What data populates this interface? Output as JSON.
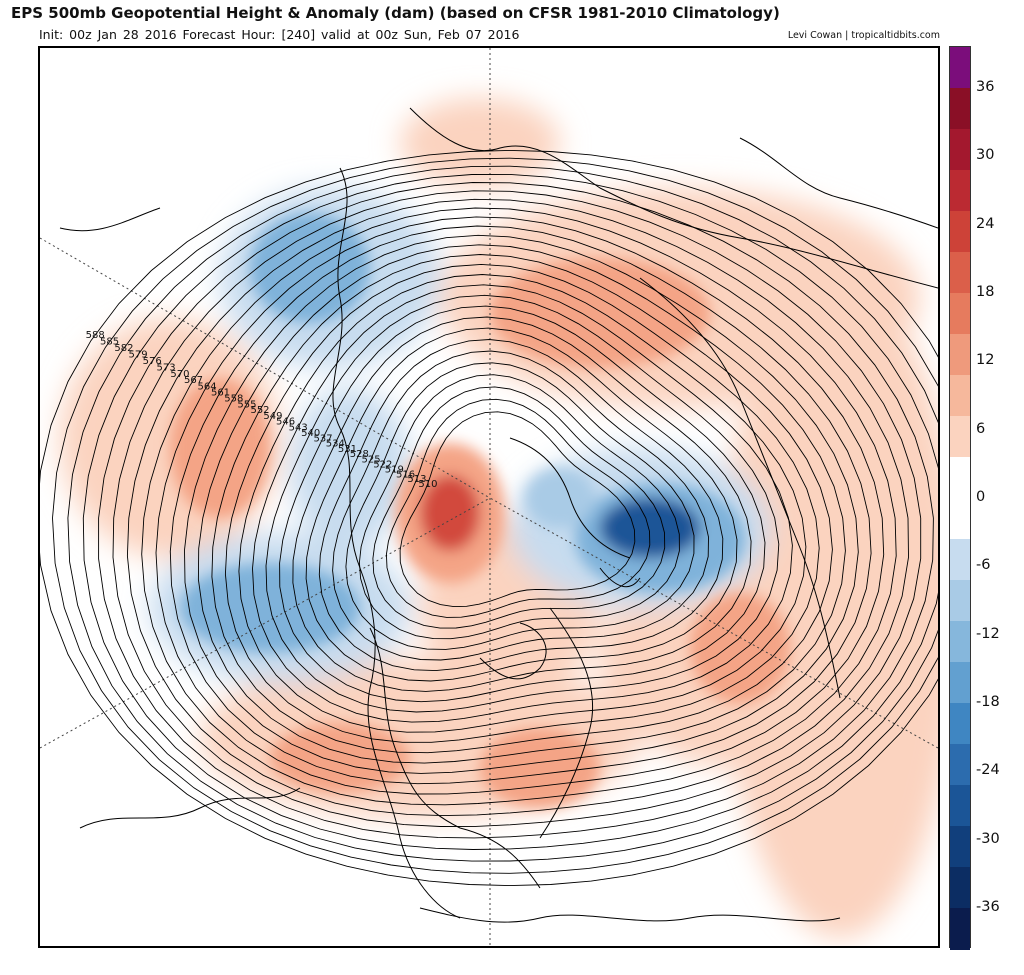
{
  "header": {
    "title": "EPS 500mb Geopotential Height & Anomaly (dam) (based on CFSR 1981-2010 Climatology)",
    "subtitle": "Init: 00z Jan 28 2016   Forecast Hour: [240]   valid at 00z Sun, Feb 07 2016",
    "credit": "Levi Cowan | tropicaltidbits.com"
  },
  "colorbar": {
    "units": "dam",
    "tick_labels": [
      "36",
      "30",
      "24",
      "18",
      "12",
      "6",
      "0",
      "-6",
      "-12",
      "-18",
      "-24",
      "-30",
      "-36"
    ],
    "tick_values": [
      36,
      30,
      24,
      18,
      12,
      6,
      0,
      -6,
      -12,
      -18,
      -24,
      -30,
      -36
    ],
    "segment_colors": [
      "#7b0d7b",
      "#8a0f26",
      "#a3182e",
      "#bb2a32",
      "#cd4238",
      "#db5f4a",
      "#e67b5e",
      "#ef9a7c",
      "#f6b89c",
      "#fbd3bf",
      "#ffffff",
      "#ffffff",
      "#c7dcef",
      "#a9cbe6",
      "#86b7dc",
      "#62a0d0",
      "#3f86c2",
      "#2c6cae",
      "#1b5597",
      "#113f7c",
      "#0c2d63",
      "#0b1c4d"
    ]
  },
  "contour_labels": [
    {
      "text": "588"
    },
    {
      "text": "585"
    },
    {
      "text": "582"
    },
    {
      "text": "579"
    },
    {
      "text": "576"
    },
    {
      "text": "573"
    },
    {
      "text": "570"
    },
    {
      "text": "567"
    },
    {
      "text": "564"
    },
    {
      "text": "561"
    },
    {
      "text": "558"
    },
    {
      "text": "555"
    },
    {
      "text": "552"
    },
    {
      "text": "549"
    },
    {
      "text": "546"
    },
    {
      "text": "543"
    },
    {
      "text": "540"
    },
    {
      "text": "537"
    },
    {
      "text": "534"
    },
    {
      "text": "531"
    },
    {
      "text": "528"
    },
    {
      "text": "525"
    },
    {
      "text": "522"
    },
    {
      "text": "519"
    },
    {
      "text": "516"
    },
    {
      "text": "513"
    },
    {
      "text": "510"
    }
  ],
  "colors": {
    "positive_anomaly_light": "#fbd3bf",
    "positive_anomaly_mid": "#f4a486",
    "positive_anomaly_strong": "#d2493c",
    "negative_anomaly_light": "#c7dcef",
    "negative_anomaly_mid": "#7fb2da",
    "negative_anomaly_strong": "#1b5597",
    "contour": "#000000",
    "coastline": "#000000"
  }
}
